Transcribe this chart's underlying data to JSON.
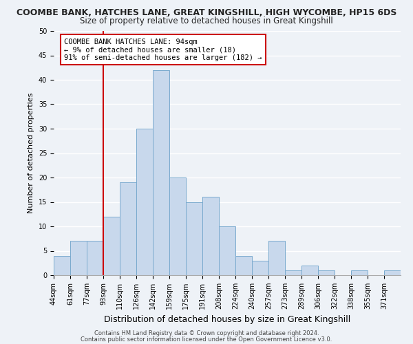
{
  "title": "COOMBE BANK, HATCHES LANE, GREAT KINGSHILL, HIGH WYCOMBE, HP15 6DS",
  "subtitle": "Size of property relative to detached houses in Great Kingshill",
  "xlabel": "Distribution of detached houses by size in Great Kingshill",
  "ylabel": "Number of detached properties",
  "bin_labels": [
    "44sqm",
    "61sqm",
    "77sqm",
    "93sqm",
    "110sqm",
    "126sqm",
    "142sqm",
    "159sqm",
    "175sqm",
    "191sqm",
    "208sqm",
    "224sqm",
    "240sqm",
    "257sqm",
    "273sqm",
    "289sqm",
    "306sqm",
    "322sqm",
    "338sqm",
    "355sqm",
    "371sqm"
  ],
  "bar_heights": [
    4,
    7,
    7,
    12,
    19,
    30,
    42,
    20,
    15,
    16,
    10,
    4,
    3,
    7,
    1,
    2,
    1,
    0,
    1,
    0,
    1
  ],
  "bar_color": "#c8d8ec",
  "bar_edgecolor": "#7aaace",
  "vline_index": 3,
  "vline_color": "#cc0000",
  "annotation_text": "COOMBE BANK HATCHES LANE: 94sqm\n← 9% of detached houses are smaller (18)\n91% of semi-detached houses are larger (182) →",
  "annotation_box_edgecolor": "#cc0000",
  "ylim": [
    0,
    50
  ],
  "yticks": [
    0,
    5,
    10,
    15,
    20,
    25,
    30,
    35,
    40,
    45,
    50
  ],
  "footer_line1": "Contains HM Land Registry data © Crown copyright and database right 2024.",
  "footer_line2": "Contains public sector information licensed under the Open Government Licence v3.0.",
  "bg_color": "#eef2f7",
  "plot_bg_color": "#eef2f7",
  "grid_color": "#ffffff",
  "title_fontsize": 9,
  "subtitle_fontsize": 8.5,
  "xlabel_fontsize": 9,
  "ylabel_fontsize": 8,
  "tick_fontsize": 7,
  "annotation_fontsize": 7.5,
  "footer_fontsize": 6
}
